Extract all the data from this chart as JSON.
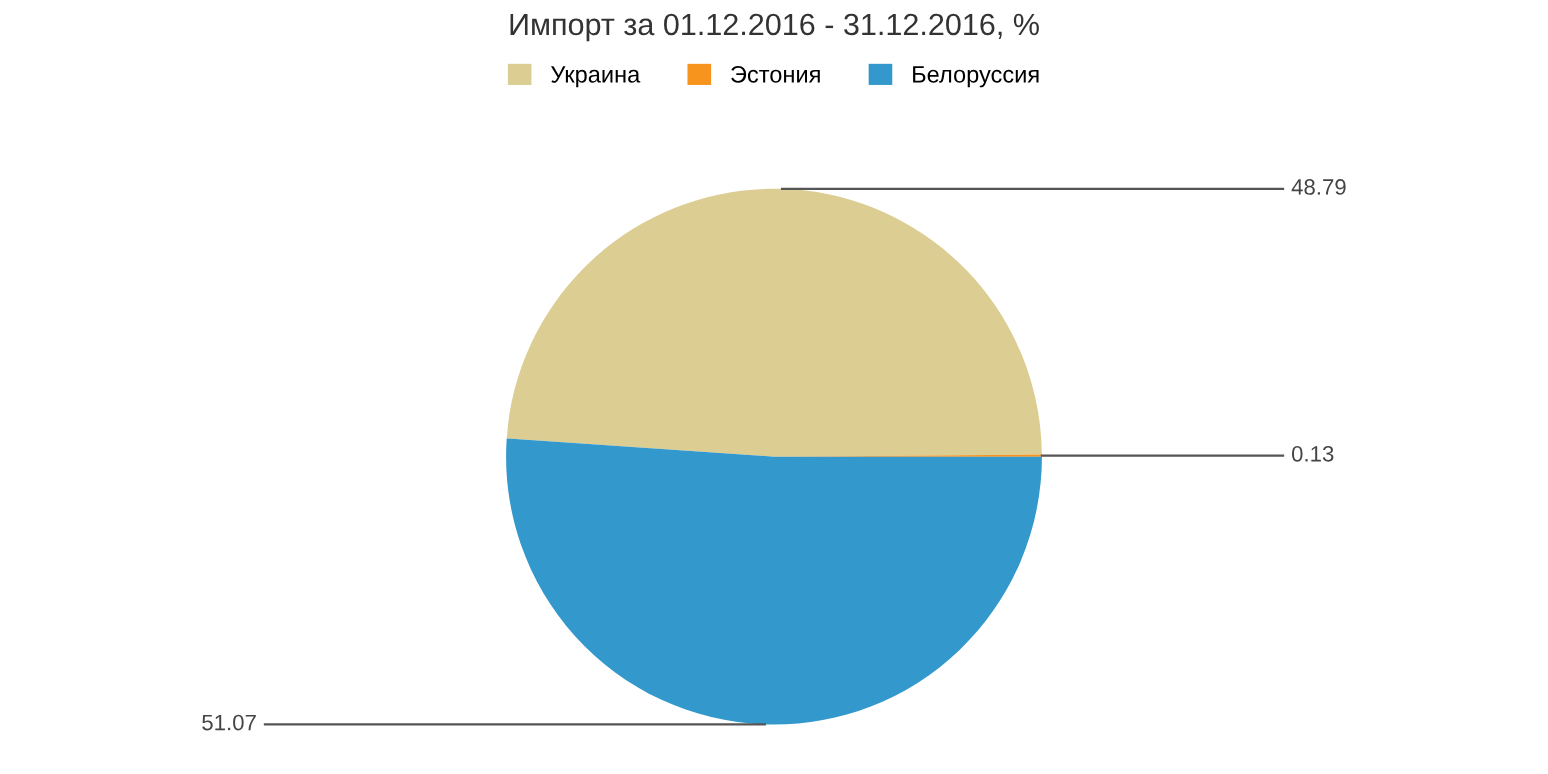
{
  "chart_data": {
    "type": "pie",
    "title": "Импорт за 01.12.2016 - 31.12.2016, %",
    "categories": [
      "Украина",
      "Эстония",
      "Белоруссия"
    ],
    "values": [
      48.79,
      0.13,
      51.07
    ],
    "colors": [
      "#dccd93",
      "#f7941d",
      "#3398cc"
    ],
    "data_labels": true,
    "legend": "top"
  }
}
